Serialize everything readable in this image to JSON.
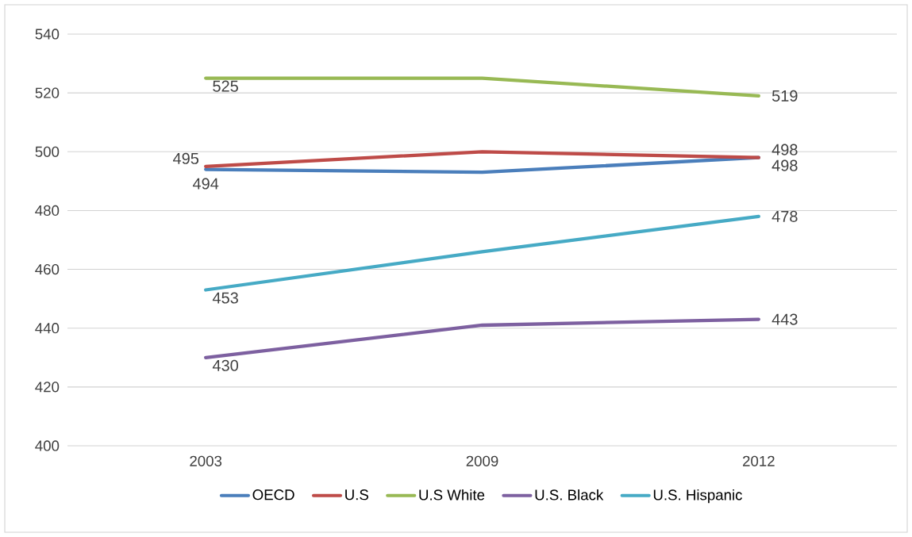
{
  "chart_data": {
    "type": "line",
    "categories": [
      "2003",
      "2009",
      "2012"
    ],
    "series": [
      {
        "name": "OECD",
        "color": "#4a7ebb",
        "values": [
          494,
          493,
          498
        ],
        "value_labels": [
          "494",
          null,
          "498"
        ]
      },
      {
        "name": "U.S",
        "color": "#be4b48",
        "values": [
          495,
          500,
          498
        ],
        "value_labels": [
          "495",
          null,
          "498"
        ]
      },
      {
        "name": "U.S White",
        "color": "#98b954",
        "values": [
          525,
          525,
          519
        ],
        "value_labels": [
          "525",
          null,
          "519"
        ]
      },
      {
        "name": "U.S. Black",
        "color": "#7d60a0",
        "values": [
          430,
          441,
          443
        ],
        "value_labels": [
          "430",
          null,
          "443"
        ]
      },
      {
        "name": "U.S. Hispanic",
        "color": "#46aac5",
        "values": [
          453,
          466,
          478
        ],
        "value_labels": [
          "453",
          null,
          "478"
        ]
      }
    ],
    "ylim": [
      400,
      540
    ],
    "yticks": [
      400,
      420,
      440,
      460,
      480,
      500,
      520,
      540
    ],
    "grid": "y",
    "legend": "bottom",
    "marker": "none",
    "line_style": "solid"
  }
}
